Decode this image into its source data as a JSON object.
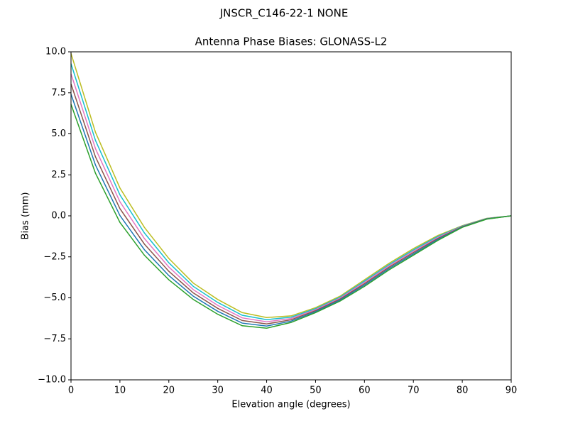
{
  "chart_data": {
    "type": "line",
    "suptitle": "JNSCR_C146-22-1 NONE",
    "title": "Antenna Phase Biases: GLONASS-L2",
    "xlabel": "Elevation angle (degrees)",
    "ylabel": "Bias (mm)",
    "x": [
      0,
      5,
      10,
      15,
      20,
      25,
      30,
      35,
      40,
      45,
      50,
      55,
      60,
      65,
      70,
      75,
      80,
      85,
      90
    ],
    "xlim": [
      0,
      90
    ],
    "ylim": [
      -10,
      10
    ],
    "xticks": [
      0,
      10,
      20,
      30,
      40,
      50,
      60,
      70,
      80,
      90
    ],
    "yticks": [
      {
        "value": -10,
        "label": "−10.0"
      },
      {
        "value": -7.5,
        "label": "−7.5"
      },
      {
        "value": -5,
        "label": "−5.0"
      },
      {
        "value": -2.5,
        "label": "−2.5"
      },
      {
        "value": 0,
        "label": "0.0"
      },
      {
        "value": 2.5,
        "label": "2.5"
      },
      {
        "value": 5,
        "label": "5.0"
      },
      {
        "value": 7.5,
        "label": "7.5"
      },
      {
        "value": 10,
        "label": "10.0"
      }
    ],
    "grid": false,
    "series": [
      {
        "color": "#bcbd22",
        "values": [
          9.9,
          5.1,
          1.7,
          -0.7,
          -2.6,
          -4.1,
          -5.1,
          -5.9,
          -6.2,
          -6.1,
          -5.6,
          -4.9,
          -3.9,
          -2.9,
          -2.0,
          -1.2,
          -0.6,
          -0.15,
          0
        ]
      },
      {
        "color": "#17becf",
        "values": [
          9.28,
          4.6,
          1.28,
          -1.04,
          -2.86,
          -4.3,
          -5.28,
          -6.06,
          -6.33,
          -6.18,
          -5.66,
          -4.96,
          -3.98,
          -2.98,
          -2.08,
          -1.26,
          -0.62,
          -0.16,
          0
        ]
      },
      {
        "color": "#e377c2",
        "values": [
          8.66,
          4.1,
          0.86,
          -1.38,
          -3.12,
          -4.5,
          -5.46,
          -6.22,
          -6.46,
          -6.26,
          -5.72,
          -5.02,
          -4.06,
          -3.06,
          -2.16,
          -1.32,
          -0.64,
          -0.17,
          0
        ]
      },
      {
        "color": "#8c564b",
        "values": [
          8.04,
          3.6,
          0.44,
          -1.72,
          -3.38,
          -4.7,
          -5.64,
          -6.38,
          -6.59,
          -6.34,
          -5.78,
          -5.08,
          -4.14,
          -3.14,
          -2.24,
          -1.38,
          -0.66,
          -0.18,
          0
        ]
      },
      {
        "color": "#1f77b4",
        "values": [
          7.42,
          3.1,
          0.02,
          -2.06,
          -3.64,
          -4.9,
          -5.82,
          -6.54,
          -6.72,
          -6.42,
          -5.84,
          -5.14,
          -4.22,
          -3.22,
          -2.32,
          -1.44,
          -0.68,
          -0.19,
          0
        ]
      },
      {
        "color": "#2ca02c",
        "values": [
          6.8,
          2.6,
          -0.4,
          -2.4,
          -3.9,
          -5.1,
          -6.0,
          -6.7,
          -6.85,
          -6.5,
          -5.9,
          -5.2,
          -4.3,
          -3.3,
          -2.4,
          -1.5,
          -0.7,
          -0.2,
          0
        ]
      }
    ]
  }
}
